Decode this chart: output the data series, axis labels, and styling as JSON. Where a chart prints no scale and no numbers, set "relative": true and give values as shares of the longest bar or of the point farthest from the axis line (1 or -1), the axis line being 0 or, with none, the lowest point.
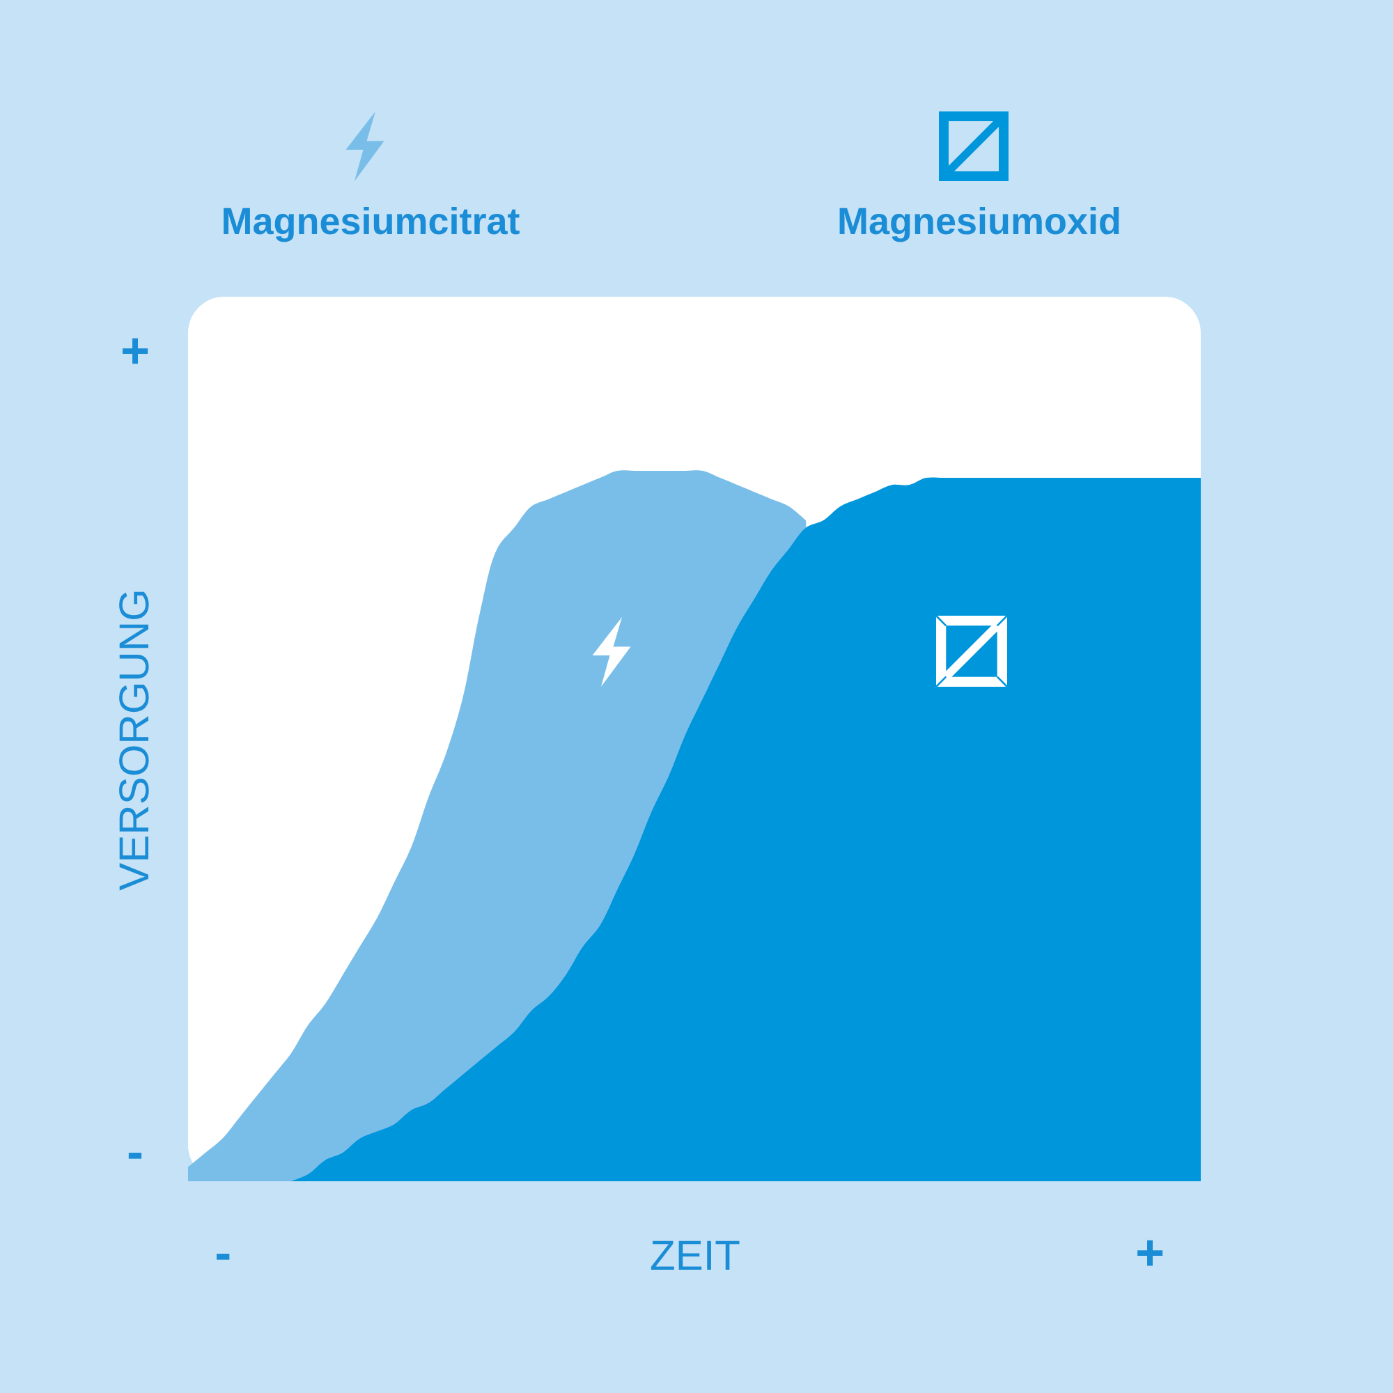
{
  "chart_data": {
    "type": "area",
    "xlabel": "ZEIT",
    "ylabel": "VERSORGUNG",
    "relative": true,
    "annotations": [
      "+",
      "-"
    ],
    "legend": "top",
    "categories": [
      null,
      null,
      "-",
      null,
      null,
      null,
      null,
      null,
      null,
      null,
      null,
      null,
      null,
      null,
      null,
      null,
      null,
      null,
      null,
      null,
      null,
      null,
      null,
      null,
      null,
      null,
      null,
      null,
      null,
      null,
      null,
      null,
      null,
      null,
      null,
      null,
      null,
      null,
      null,
      null,
      null,
      null,
      null,
      null,
      null,
      null,
      null,
      null,
      null,
      null,
      null,
      null,
      null,
      null,
      null,
      null,
      "+",
      null,
      null,
      null
    ],
    "series": [
      {
        "name": "Magnesiumcitrat",
        "color": "#79bee9",
        "values": [
          0.02,
          0.04,
          0.06,
          0.09,
          0.12,
          0.15,
          0.18,
          0.22,
          0.25,
          0.29,
          0.33,
          0.37,
          0.42,
          0.47,
          0.54,
          0.6,
          0.68,
          0.8,
          0.89,
          0.92,
          0.95,
          0.96,
          0.97,
          0.98,
          0.99,
          1,
          1,
          1,
          1,
          1,
          1,
          0.99,
          0.98,
          0.97,
          0.96,
          0.95,
          0.93,
          null,
          null,
          null,
          null,
          null,
          null,
          null,
          null,
          null,
          null,
          null,
          null,
          null,
          null,
          null,
          null,
          null,
          null,
          null,
          null,
          null,
          null,
          null
        ]
      },
      {
        "name": "Magnesiumoxid",
        "color": "#0096dc",
        "values": [
          null,
          null,
          null,
          null,
          null,
          null,
          0,
          0.01,
          0.03,
          0.04,
          0.06,
          0.07,
          0.08,
          0.1,
          0.11,
          0.13,
          0.15,
          0.17,
          0.19,
          0.21,
          0.24,
          0.26,
          0.29,
          0.33,
          0.36,
          0.41,
          0.46,
          0.52,
          0.57,
          0.63,
          0.68,
          0.73,
          0.78,
          0.82,
          0.86,
          0.89,
          0.92,
          0.93,
          0.95,
          0.96,
          0.97,
          0.98,
          0.98,
          0.99,
          0.99,
          0.99,
          0.99,
          0.99,
          0.99,
          0.99,
          0.99,
          0.99,
          0.99,
          0.99,
          0.99,
          0.99,
          0.99,
          0.99,
          0.99,
          0.99
        ]
      }
    ]
  }
}
